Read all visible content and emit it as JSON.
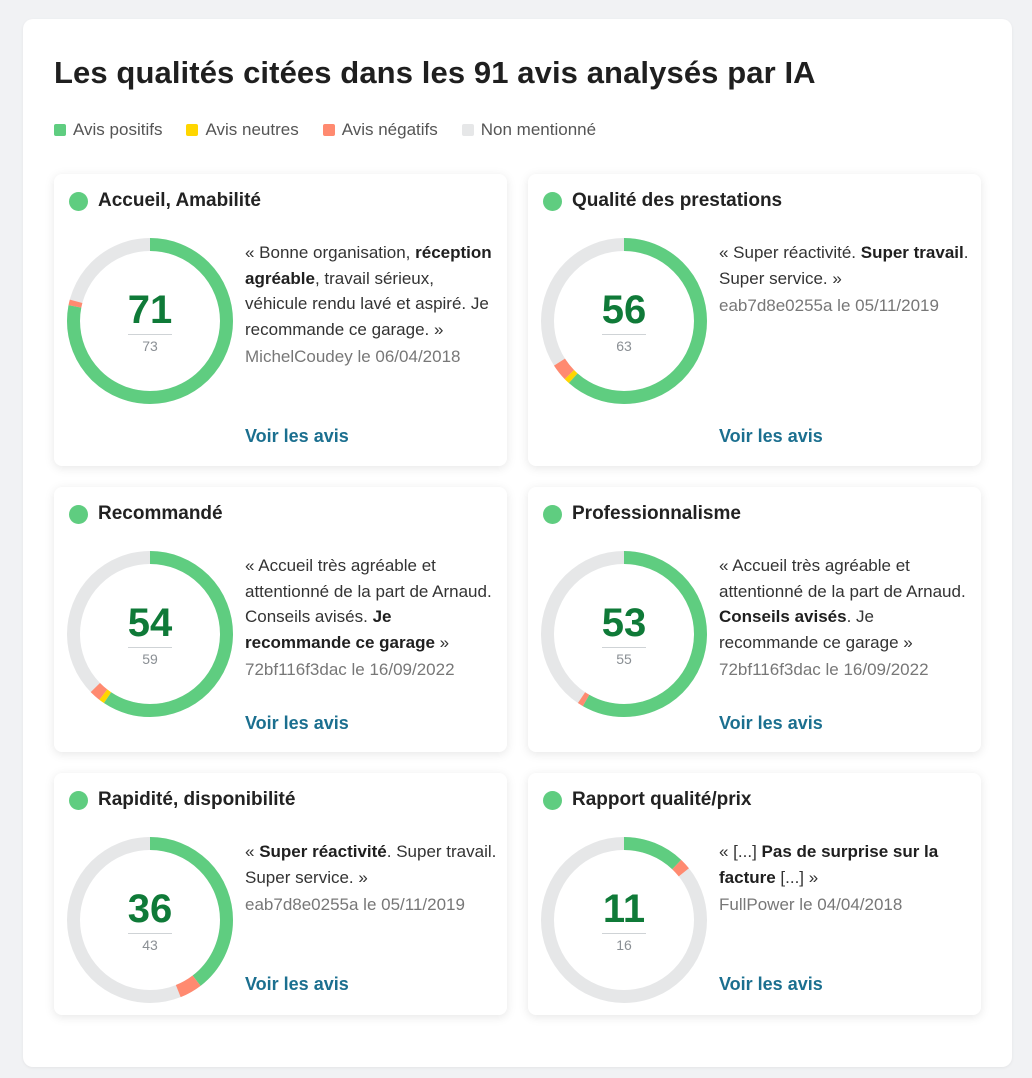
{
  "title": "Les qualités citées dans les 91 avis analysés par IA",
  "legend": [
    {
      "label": "Avis positifs",
      "color": "#5fcd80"
    },
    {
      "label": "Avis neutres",
      "color": "#ffd600"
    },
    {
      "label": "Avis négatifs",
      "color": "#ff8a70"
    },
    {
      "label": "Non mentionné",
      "color": "#e6e7e8"
    }
  ],
  "colors": {
    "positive": "#5fcd80",
    "neutral": "#ffd600",
    "negative": "#ff8a70",
    "none": "#e6e7e8"
  },
  "total_reviews": 91,
  "cards": [
    {
      "title": "Accueil, Amabilité",
      "count": "71",
      "total": "73",
      "breakdown": {
        "positive": 71,
        "neutral": 0,
        "negative": 1
      },
      "quote": [
        {
          "t": "« Bonne organisation, ",
          "b": false
        },
        {
          "t": "réception agréable",
          "b": true
        },
        {
          "t": ", travail sérieux, véhicule rendu lavé et aspiré. Je recommande ce garage. »",
          "b": false
        }
      ],
      "author": "MichelCoudey le 06/04/2018",
      "link": "Voir les avis"
    },
    {
      "title": "Qualité des prestations",
      "count": "56",
      "total": "63",
      "breakdown": {
        "positive": 56,
        "neutral": 1,
        "negative": 3
      },
      "quote": [
        {
          "t": "« Super réactivité. ",
          "b": false
        },
        {
          "t": "Super travail",
          "b": true
        },
        {
          "t": ". Super service. »",
          "b": false
        }
      ],
      "author": "eab7d8e0255a le 05/11/2019",
      "link": "Voir les avis"
    },
    {
      "title": "Recommandé",
      "count": "54",
      "total": "59",
      "breakdown": {
        "positive": 54,
        "neutral": 1,
        "negative": 2
      },
      "quote": [
        {
          "t": "« Accueil très agréable et attentionné de la part de Arnaud. Conseils avisés. ",
          "b": false
        },
        {
          "t": "Je recommande ce garage",
          "b": true
        },
        {
          "t": " »",
          "b": false
        }
      ],
      "author": "72bf116f3dac le 16/09/2022",
      "link": "Voir les avis"
    },
    {
      "title": "Professionnalisme",
      "count": "53",
      "total": "55",
      "breakdown": {
        "positive": 53,
        "neutral": 0,
        "negative": 1
      },
      "quote": [
        {
          "t": "« Accueil très agréable et attentionné de la part de Arnaud. ",
          "b": false
        },
        {
          "t": "Conseils avisés",
          "b": true
        },
        {
          "t": ". Je recommande ce garage »",
          "b": false
        }
      ],
      "author": "72bf116f3dac le 16/09/2022",
      "link": "Voir les avis"
    },
    {
      "title": "Rapidité, disponibilité",
      "count": "36",
      "total": "43",
      "breakdown": {
        "positive": 36,
        "neutral": 0,
        "negative": 4
      },
      "quote": [
        {
          "t": "« ",
          "b": false
        },
        {
          "t": "Super réactivité",
          "b": true
        },
        {
          "t": ". Super travail. Super service. »",
          "b": false
        }
      ],
      "author": "eab7d8e0255a le 05/11/2019",
      "link": "Voir les avis"
    },
    {
      "title": "Rapport qualité/prix",
      "count": "11",
      "total": "16",
      "breakdown": {
        "positive": 11,
        "neutral": 0,
        "negative": 2
      },
      "quote": [
        {
          "t": "« [...] ",
          "b": false
        },
        {
          "t": "Pas de surprise sur la facture",
          "b": true
        },
        {
          "t": " [...] »",
          "b": false
        }
      ],
      "author": "FullPower le 04/04/2018",
      "link": "Voir les avis"
    }
  ]
}
